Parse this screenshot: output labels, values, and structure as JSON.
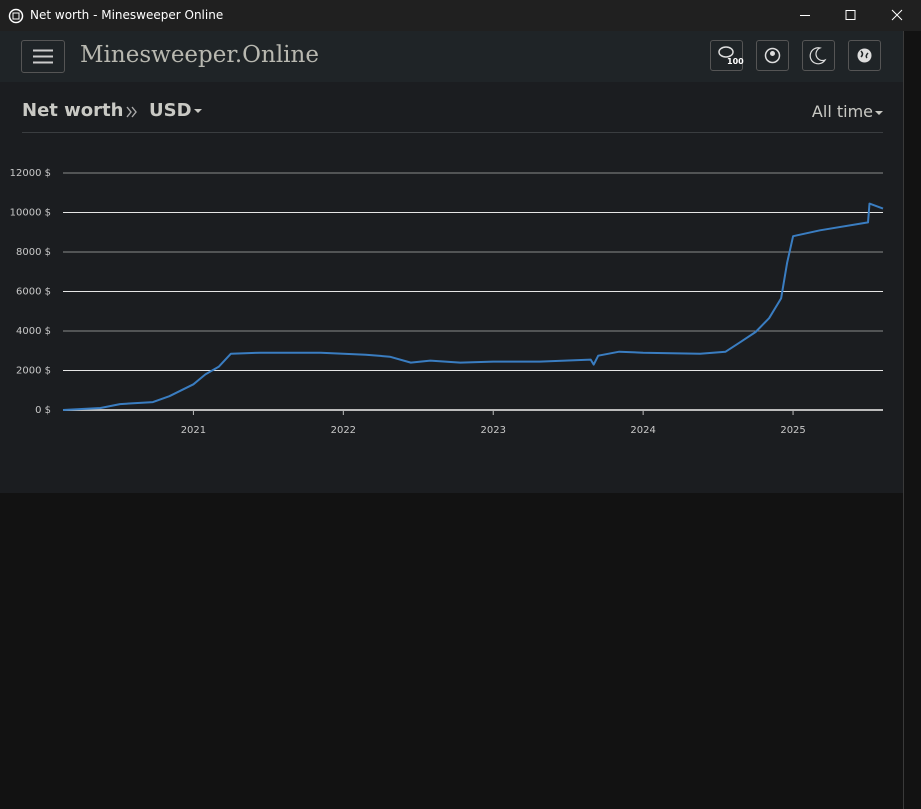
{
  "window": {
    "title": "Net worth - Minesweeper Online"
  },
  "header": {
    "brand": "Minesweeper.Online",
    "chat_badge": "100"
  },
  "breadcrumb": {
    "page": "Net worth",
    "currency": "USD",
    "period": "All time"
  },
  "chart_data": {
    "type": "line",
    "x": [
      2020.13,
      2020.38,
      2020.51,
      2020.73,
      2020.84,
      2021.0,
      2021.08,
      2021.17,
      2021.25,
      2021.45,
      2021.85,
      2022.0,
      2022.15,
      2022.31,
      2022.45,
      2022.58,
      2022.78,
      2023.0,
      2023.31,
      2023.65,
      2023.67,
      2023.7,
      2023.84,
      2024.0,
      2024.38,
      2024.55,
      2024.65,
      2024.75,
      2024.84,
      2024.92,
      2024.96,
      2025.0,
      2025.18,
      2025.5,
      2025.51,
      2025.6
    ],
    "series": [
      {
        "color": "#3a7dc1",
        "values": [
          0,
          100,
          300,
          400,
          700,
          1300,
          1800,
          2200,
          2850,
          2900,
          2900,
          2850,
          2800,
          2700,
          2400,
          2500,
          2400,
          2450,
          2450,
          2550,
          2300,
          2750,
          2950,
          2900,
          2850,
          2950,
          3450,
          3950,
          4650,
          5650,
          7450,
          8800,
          9100,
          9500,
          10450,
          10200
        ]
      }
    ],
    "xlim": [
      2020.13,
      2025.6
    ],
    "xticks": [
      2021,
      2022,
      2023,
      2024,
      2025
    ],
    "ylim": [
      0,
      12000
    ],
    "yticks": [
      {
        "value": 0,
        "label": "0 $"
      },
      {
        "value": 2000,
        "label": "2000 $"
      },
      {
        "value": 4000,
        "label": "4000 $"
      },
      {
        "value": 6000,
        "label": "6000 $"
      },
      {
        "value": 8000,
        "label": "8000 $"
      },
      {
        "value": 10000,
        "label": "10000 $"
      },
      {
        "value": 12000,
        "label": "12000 $"
      }
    ],
    "grid": true
  }
}
